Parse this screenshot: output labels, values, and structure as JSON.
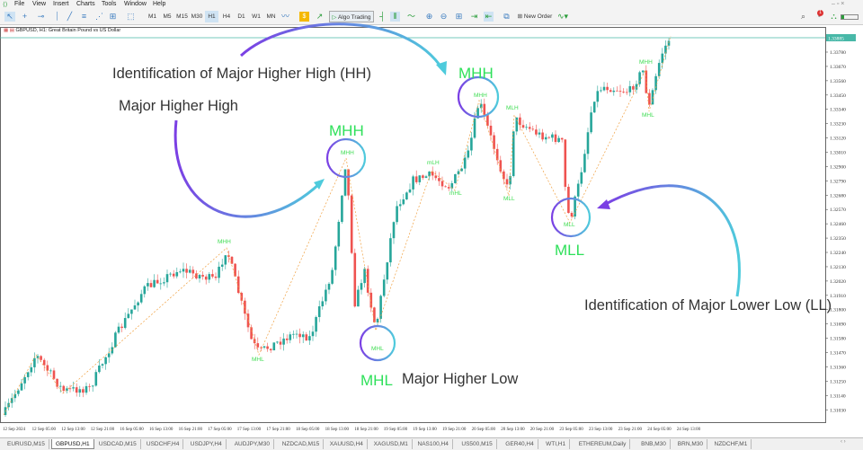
{
  "menu": [
    "File",
    "View",
    "Insert",
    "Charts",
    "Tools",
    "Window",
    "Help"
  ],
  "toolbar": {
    "timeframes": [
      "M1",
      "M5",
      "M15",
      "M30",
      "H1",
      "H4",
      "D1",
      "W1",
      "MN"
    ],
    "active_timeframe": "H1",
    "algo_trading": "Algo Trading",
    "new_order": "New Order",
    "notification_count": "1"
  },
  "chart": {
    "title": "GBPUSD, H1:  Great Britain Pound vs US Dollar",
    "current_price": "1.33885",
    "bull_color": "#26a69a",
    "bear_color": "#ef5350",
    "price_labels": [
      "1.33780",
      "1.33670",
      "1.33560",
      "1.33450",
      "1.33340",
      "1.33230",
      "1.33120",
      "1.33010",
      "1.32900",
      "1.32790",
      "1.32680",
      "1.32570",
      "1.32460",
      "1.32350",
      "1.32240",
      "1.32130",
      "1.32020",
      "1.31910",
      "1.31800",
      "1.31690",
      "1.31580",
      "1.31470",
      "1.31360",
      "1.31250",
      "1.31140",
      "1.31030"
    ],
    "time_labels": [
      "12 Sep 2024",
      "12 Sep 05:00",
      "12 Sep 13:00",
      "12 Sep 21:00",
      "16 Sep 05:00",
      "16 Sep 13:00",
      "16 Sep 21:00",
      "17 Sep 05:00",
      "17 Sep 13:00",
      "17 Sep 21:00",
      "18 Sep 05:00",
      "18 Sep 13:00",
      "18 Sep 21:00",
      "19 Sep 05:00",
      "19 Sep 13:00",
      "19 Sep 21:00",
      "20 Sep 05:00",
      "20 Sep 13:00",
      "20 Sep 21:00",
      "23 Sep 05:00",
      "23 Sep 13:00",
      "23 Sep 21:00",
      "24 Sep 05:00",
      "24 Sep 13:00"
    ]
  },
  "annotations": {
    "hh_ident": "Identification of Major Higher High (HH)",
    "major_hh": "Major Higher High",
    "mhh1": "MHH",
    "mhh2": "MHH",
    "mll": "MLL",
    "mhl": "MHL",
    "major_hl": "Major Higher Low",
    "ll_ident": "Identification of Major Lower Low (LL)"
  },
  "swing_labels": [
    "MHH",
    "MHL",
    "MHH",
    "MHL",
    "mLH",
    "mHL",
    "MHH",
    "MLH",
    "MLL",
    "MLL",
    "MHH",
    "MHL"
  ],
  "tabs": [
    "EURUSD,M15",
    "GBPUSD,H1",
    "USDCAD,M15",
    "USDCHF,H4",
    "USDJPY,H4",
    "AUDJPY,M30",
    "NZDCAD,M15",
    "XAUUSD,H4",
    "XAGUSD,M1",
    "NAS100,H4",
    "US500,M15",
    "GER40,H4",
    "WTI,H1",
    "ETHEREUM,Daily",
    "BNB,M30",
    "BRN,M30",
    "NZDCHF,M1"
  ],
  "active_tab": "GBPUSD,H1"
}
